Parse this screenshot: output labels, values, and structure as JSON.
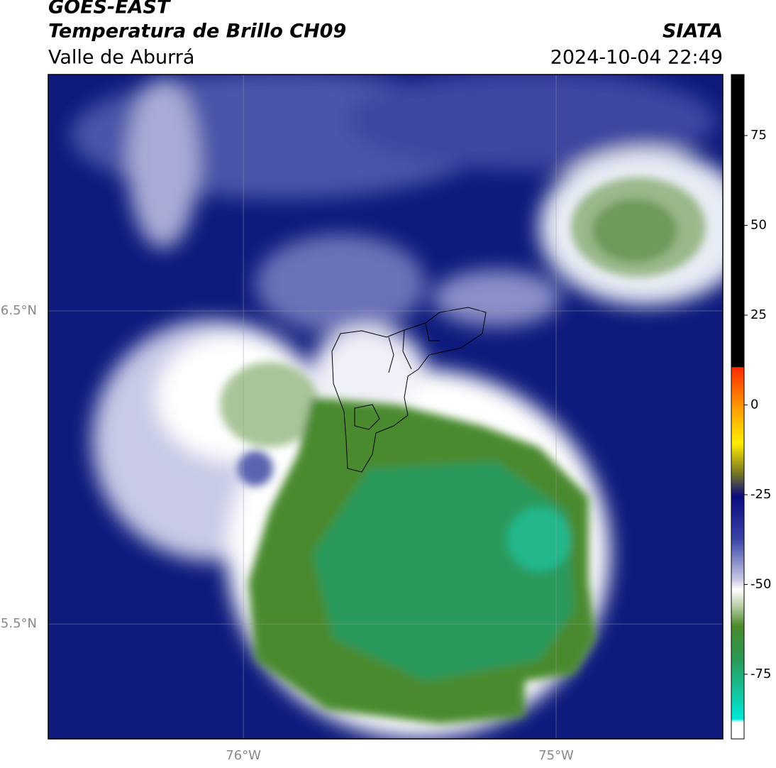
{
  "header": {
    "title": "GOES-EAST",
    "subtitle": "Temperatura de Brillo CH09",
    "source": "SIATA",
    "region": "Valle de Aburrá",
    "datetime": "2024-10-04 22:49"
  },
  "map": {
    "lonlim": [
      -76.624,
      -74.467
    ],
    "latlim": [
      5.133,
      7.255
    ],
    "lonticks": [
      {
        "value": -76,
        "label": "76°W"
      },
      {
        "value": -75,
        "label": "75°W"
      }
    ],
    "latticks": [
      {
        "value": 6.5,
        "label": "6.5°N"
      },
      {
        "value": 5.5,
        "label": "5.5°N"
      }
    ],
    "grid": true
  },
  "colorbar": {
    "lim": [
      -93,
      92
    ],
    "ticks": [
      75,
      50,
      25,
      0,
      -25,
      -50,
      -75
    ]
  }
}
